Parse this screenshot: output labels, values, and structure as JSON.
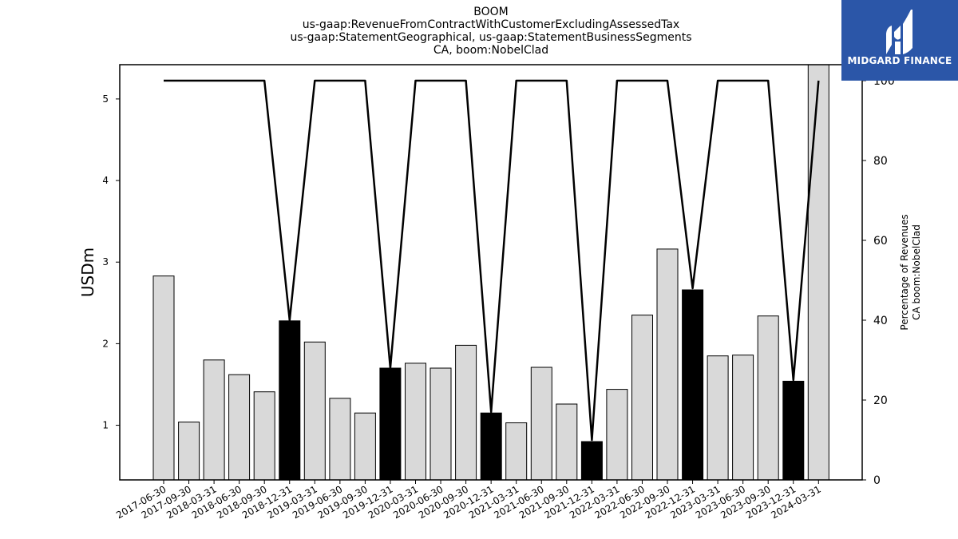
{
  "header": {
    "title_lines": [
      "BOOM",
      "us-gaap:RevenueFromContractWithCustomerExcludingAssessedTax",
      "us-gaap:StatementGeographical, us-gaap:StatementBusinessSegments",
      "CA, boom:NobelClad"
    ]
  },
  "logo": {
    "text": "MIDGARD FINANCE",
    "color": "#2b56a8"
  },
  "chart_data": {
    "type": "bar",
    "categories": [
      "2017-06-30",
      "2017-09-30",
      "2018-03-31",
      "2018-06-30",
      "2018-09-30",
      "2018-12-31",
      "2019-03-31",
      "2019-06-30",
      "2019-09-30",
      "2019-12-31",
      "2020-03-31",
      "2020-06-30",
      "2020-09-30",
      "2020-12-31",
      "2021-03-31",
      "2021-06-30",
      "2021-09-30",
      "2021-12-31",
      "2022-03-31",
      "2022-06-30",
      "2022-09-30",
      "2022-12-31",
      "2023-03-31",
      "2023-06-30",
      "2023-09-30",
      "2023-12-31",
      "2024-03-31"
    ],
    "series": [
      {
        "type": "bar",
        "values": [
          2.83,
          1.04,
          1.8,
          1.62,
          1.41,
          2.28,
          2.02,
          1.33,
          1.15,
          1.7,
          1.76,
          1.7,
          1.98,
          1.15,
          1.03,
          1.71,
          1.26,
          0.8,
          1.44,
          2.35,
          3.16,
          2.66,
          1.85,
          1.86,
          2.34,
          1.54,
          5.5
        ],
        "highlighted": [
          false,
          false,
          false,
          false,
          false,
          true,
          false,
          false,
          false,
          true,
          false,
          false,
          false,
          true,
          false,
          false,
          false,
          true,
          false,
          false,
          false,
          true,
          false,
          false,
          false,
          true,
          false
        ],
        "color": "#d9d9d9",
        "highlight_color": "#000000"
      },
      {
        "type": "line",
        "axis": "right",
        "values": [
          100,
          100,
          100,
          100,
          100,
          40,
          100,
          100,
          100,
          28,
          100,
          100,
          100,
          17,
          100,
          100,
          100,
          10,
          100,
          100,
          100,
          48,
          100,
          100,
          100,
          25,
          100
        ],
        "color": "#000000"
      }
    ],
    "ylabel": "USDm",
    "y2label_lines": [
      "Percentage of Revenues",
      "CA boom:NobelClad"
    ],
    "ylim": [
      0.33,
      5.42
    ],
    "y2lim": [
      0,
      104
    ],
    "yticks": [
      1,
      2,
      3,
      4,
      5
    ],
    "y2ticks": [
      0,
      20,
      40,
      60,
      80,
      100
    ],
    "grid": false
  }
}
